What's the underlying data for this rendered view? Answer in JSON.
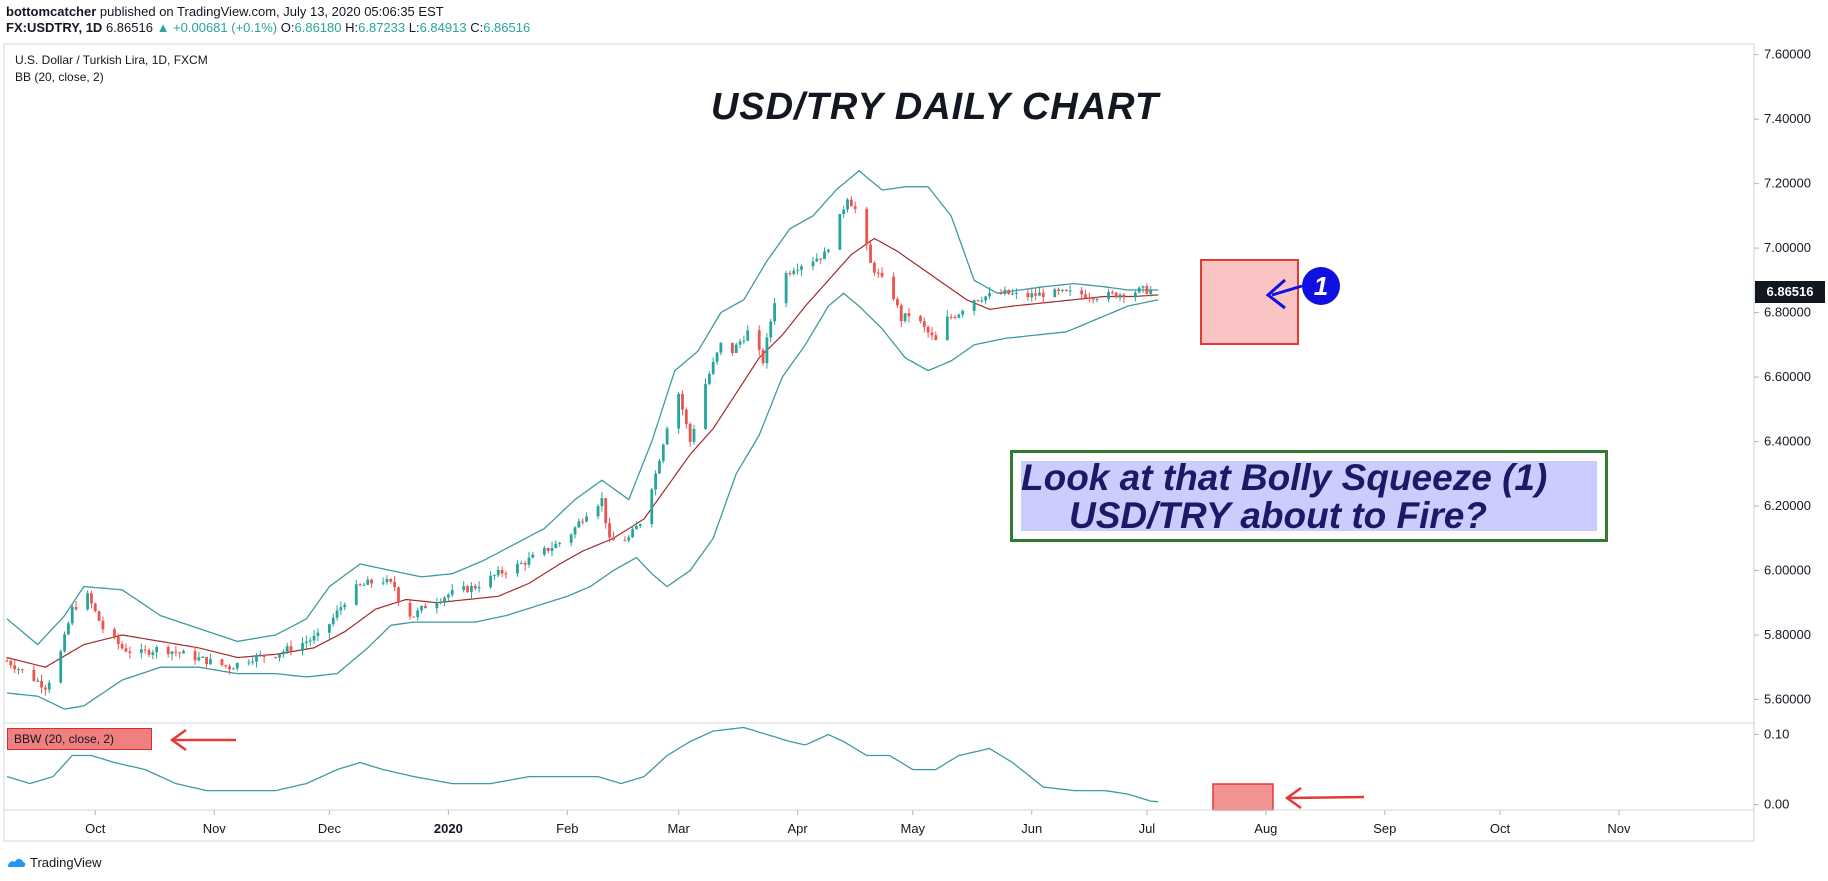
{
  "header": {
    "publisher": "bottomcatcher",
    "published_text": "published on TradingView.com, July 13, 2020 05:06:35 EST",
    "symbol": "FX:USDTRY, 1D",
    "last": "6.86516",
    "change": "+0.00681 (+0.1%)",
    "o_label": "O:",
    "o": "6.86180",
    "h_label": "H:",
    "h": "6.87233",
    "l_label": "L:",
    "l": "6.84913",
    "c_label": "C:",
    "c": "6.86516"
  },
  "legend": {
    "instrument": "U.S. Dollar / Turkish Lira, 1D, FXCM",
    "bb": "BB (20, close, 2)",
    "bbw": "BBW (20, close, 2)"
  },
  "annotation": {
    "title": "USD/TRY DAILY CHART",
    "line1": "Look at that Bolly Squeeze (1)",
    "line2": "USD/TRY about to Fire?",
    "marker": "1"
  },
  "price_tag": "6.86516",
  "footer": {
    "brand": "TradingView"
  },
  "colors": {
    "up": "#26a69a",
    "down": "#ef5350",
    "bb_band": "#3d9ba0",
    "bb_basis": "#a52a2a",
    "annotation_border": "#2e7d32",
    "highlight": "#f8a5a5"
  },
  "chart_data": {
    "type": "candlestick",
    "title": "USD/TRY DAILY CHART",
    "y_ticks": [
      "7.60000",
      "7.40000",
      "7.20000",
      "7.00000",
      "6.80000",
      "6.60000",
      "6.40000",
      "6.20000",
      "6.00000",
      "5.80000",
      "5.60000"
    ],
    "y_range": [
      5.53,
      7.63
    ],
    "bbw_ticks": [
      "0.10",
      "0.00"
    ],
    "bbw_range": [
      -0.002,
      0.115
    ],
    "x_ticks": [
      "Oct",
      "Nov",
      "Dec",
      "2020",
      "Feb",
      "Mar",
      "Apr",
      "May",
      "Jun",
      "Jul",
      "Aug",
      "Sep",
      "Oct",
      "Nov"
    ],
    "x_tick_days": [
      23,
      54,
      84,
      115,
      146,
      175,
      206,
      236,
      267,
      297,
      328,
      359,
      389,
      420
    ],
    "close_days": [
      0,
      311
    ],
    "close_anchors": [
      [
        0,
        5.72
      ],
      [
        5,
        5.68
      ],
      [
        10,
        5.64
      ],
      [
        13,
        5.7
      ],
      [
        17,
        5.88
      ],
      [
        21,
        5.92
      ],
      [
        25,
        5.82
      ],
      [
        30,
        5.76
      ],
      [
        34,
        5.74
      ],
      [
        40,
        5.76
      ],
      [
        46,
        5.74
      ],
      [
        52,
        5.72
      ],
      [
        58,
        5.7
      ],
      [
        64,
        5.73
      ],
      [
        70,
        5.74
      ],
      [
        76,
        5.77
      ],
      [
        82,
        5.8
      ],
      [
        86,
        5.87
      ],
      [
        90,
        5.94
      ],
      [
        94,
        5.96
      ],
      [
        98,
        5.97
      ],
      [
        101,
        5.95
      ],
      [
        103,
        5.87
      ],
      [
        106,
        5.86
      ],
      [
        110,
        5.9
      ],
      [
        116,
        5.93
      ],
      [
        122,
        5.95
      ],
      [
        128,
        5.99
      ],
      [
        134,
        6.02
      ],
      [
        140,
        6.06
      ],
      [
        146,
        6.1
      ],
      [
        151,
        6.18
      ],
      [
        155,
        6.22
      ],
      [
        157,
        6.09
      ],
      [
        162,
        6.1
      ],
      [
        165,
        6.15
      ],
      [
        169,
        6.3
      ],
      [
        172,
        6.45
      ],
      [
        175,
        6.55
      ],
      [
        178,
        6.4
      ],
      [
        182,
        6.58
      ],
      [
        186,
        6.7
      ],
      [
        189,
        6.68
      ],
      [
        193,
        6.74
      ],
      [
        197,
        6.65
      ],
      [
        201,
        6.9
      ],
      [
        205,
        6.94
      ],
      [
        209,
        6.96
      ],
      [
        213,
        6.98
      ],
      [
        216,
        7.06
      ],
      [
        219,
        7.16
      ],
      [
        222,
        7.1
      ],
      [
        225,
        6.95
      ],
      [
        228,
        6.9
      ],
      [
        231,
        6.85
      ],
      [
        233,
        6.78
      ],
      [
        236,
        6.8
      ],
      [
        239,
        6.75
      ],
      [
        242,
        6.71
      ],
      [
        245,
        6.78
      ],
      [
        248,
        6.8
      ],
      [
        251,
        6.84
      ],
      [
        255,
        6.85
      ],
      [
        260,
        6.86
      ],
      [
        265,
        6.85
      ],
      [
        271,
        6.86
      ],
      [
        278,
        6.86
      ],
      [
        285,
        6.85
      ],
      [
        291,
        6.86
      ],
      [
        296,
        6.87
      ],
      [
        300,
        6.865
      ]
    ],
    "bb_upper_anchors": [
      [
        0,
        5.85
      ],
      [
        8,
        5.77
      ],
      [
        15,
        5.86
      ],
      [
        20,
        5.95
      ],
      [
        30,
        5.94
      ],
      [
        40,
        5.86
      ],
      [
        50,
        5.82
      ],
      [
        60,
        5.78
      ],
      [
        70,
        5.8
      ],
      [
        78,
        5.85
      ],
      [
        84,
        5.95
      ],
      [
        92,
        6.02
      ],
      [
        100,
        6.0
      ],
      [
        108,
        5.98
      ],
      [
        116,
        5.99
      ],
      [
        124,
        6.03
      ],
      [
        132,
        6.08
      ],
      [
        140,
        6.13
      ],
      [
        148,
        6.22
      ],
      [
        155,
        6.28
      ],
      [
        162,
        6.22
      ],
      [
        168,
        6.4
      ],
      [
        174,
        6.62
      ],
      [
        180,
        6.68
      ],
      [
        186,
        6.8
      ],
      [
        192,
        6.84
      ],
      [
        198,
        6.96
      ],
      [
        204,
        7.06
      ],
      [
        210,
        7.1
      ],
      [
        216,
        7.18
      ],
      [
        222,
        7.24
      ],
      [
        228,
        7.18
      ],
      [
        234,
        7.19
      ],
      [
        240,
        7.19
      ],
      [
        246,
        7.1
      ],
      [
        252,
        6.9
      ],
      [
        258,
        6.86
      ],
      [
        264,
        6.87
      ],
      [
        270,
        6.88
      ],
      [
        278,
        6.89
      ],
      [
        286,
        6.88
      ],
      [
        292,
        6.87
      ],
      [
        300,
        6.87
      ]
    ],
    "bb_basis_anchors": [
      [
        0,
        5.73
      ],
      [
        10,
        5.7
      ],
      [
        20,
        5.77
      ],
      [
        30,
        5.8
      ],
      [
        40,
        5.78
      ],
      [
        50,
        5.76
      ],
      [
        60,
        5.73
      ],
      [
        70,
        5.74
      ],
      [
        80,
        5.76
      ],
      [
        88,
        5.81
      ],
      [
        96,
        5.88
      ],
      [
        104,
        5.91
      ],
      [
        112,
        5.9
      ],
      [
        120,
        5.91
      ],
      [
        128,
        5.92
      ],
      [
        136,
        5.96
      ],
      [
        144,
        6.02
      ],
      [
        150,
        6.06
      ],
      [
        158,
        6.1
      ],
      [
        166,
        6.16
      ],
      [
        172,
        6.26
      ],
      [
        178,
        6.36
      ],
      [
        184,
        6.44
      ],
      [
        190,
        6.55
      ],
      [
        196,
        6.66
      ],
      [
        202,
        6.73
      ],
      [
        208,
        6.82
      ],
      [
        214,
        6.9
      ],
      [
        220,
        6.98
      ],
      [
        226,
        7.03
      ],
      [
        232,
        6.99
      ],
      [
        238,
        6.94
      ],
      [
        244,
        6.89
      ],
      [
        250,
        6.84
      ],
      [
        256,
        6.81
      ],
      [
        262,
        6.82
      ],
      [
        270,
        6.83
      ],
      [
        278,
        6.84
      ],
      [
        286,
        6.85
      ],
      [
        294,
        6.85
      ],
      [
        300,
        6.855
      ]
    ],
    "bb_lower_anchors": [
      [
        0,
        5.62
      ],
      [
        8,
        5.61
      ],
      [
        15,
        5.57
      ],
      [
        20,
        5.58
      ],
      [
        30,
        5.66
      ],
      [
        40,
        5.7
      ],
      [
        50,
        5.7
      ],
      [
        60,
        5.68
      ],
      [
        70,
        5.68
      ],
      [
        78,
        5.67
      ],
      [
        86,
        5.68
      ],
      [
        94,
        5.76
      ],
      [
        100,
        5.83
      ],
      [
        106,
        5.84
      ],
      [
        114,
        5.84
      ],
      [
        122,
        5.84
      ],
      [
        130,
        5.86
      ],
      [
        138,
        5.89
      ],
      [
        146,
        5.92
      ],
      [
        152,
        5.95
      ],
      [
        158,
        6.0
      ],
      [
        164,
        6.04
      ],
      [
        168,
        5.99
      ],
      [
        172,
        5.95
      ],
      [
        178,
        6.0
      ],
      [
        184,
        6.1
      ],
      [
        190,
        6.3
      ],
      [
        196,
        6.42
      ],
      [
        202,
        6.6
      ],
      [
        208,
        6.7
      ],
      [
        214,
        6.82
      ],
      [
        218,
        6.86
      ],
      [
        222,
        6.82
      ],
      [
        228,
        6.75
      ],
      [
        234,
        6.66
      ],
      [
        240,
        6.62
      ],
      [
        246,
        6.65
      ],
      [
        252,
        6.7
      ],
      [
        260,
        6.72
      ],
      [
        268,
        6.73
      ],
      [
        276,
        6.74
      ],
      [
        284,
        6.78
      ],
      [
        292,
        6.82
      ],
      [
        300,
        6.84
      ]
    ],
    "bbw_anchors": [
      [
        0,
        0.04
      ],
      [
        6,
        0.03
      ],
      [
        12,
        0.04
      ],
      [
        17,
        0.07
      ],
      [
        22,
        0.07
      ],
      [
        28,
        0.06
      ],
      [
        36,
        0.05
      ],
      [
        44,
        0.03
      ],
      [
        52,
        0.02
      ],
      [
        60,
        0.02
      ],
      [
        70,
        0.02
      ],
      [
        78,
        0.03
      ],
      [
        86,
        0.05
      ],
      [
        92,
        0.06
      ],
      [
        98,
        0.05
      ],
      [
        106,
        0.04
      ],
      [
        116,
        0.03
      ],
      [
        126,
        0.03
      ],
      [
        136,
        0.04
      ],
      [
        146,
        0.04
      ],
      [
        154,
        0.04
      ],
      [
        160,
        0.03
      ],
      [
        166,
        0.04
      ],
      [
        172,
        0.07
      ],
      [
        178,
        0.09
      ],
      [
        184,
        0.105
      ],
      [
        192,
        0.11
      ],
      [
        198,
        0.1
      ],
      [
        204,
        0.09
      ],
      [
        208,
        0.085
      ],
      [
        214,
        0.1
      ],
      [
        218,
        0.09
      ],
      [
        224,
        0.07
      ],
      [
        230,
        0.07
      ],
      [
        236,
        0.05
      ],
      [
        242,
        0.05
      ],
      [
        248,
        0.07
      ],
      [
        256,
        0.08
      ],
      [
        262,
        0.06
      ],
      [
        270,
        0.025
      ],
      [
        278,
        0.02
      ],
      [
        286,
        0.02
      ],
      [
        292,
        0.015
      ],
      [
        298,
        0.005
      ],
      [
        300,
        0.004
      ]
    ]
  }
}
